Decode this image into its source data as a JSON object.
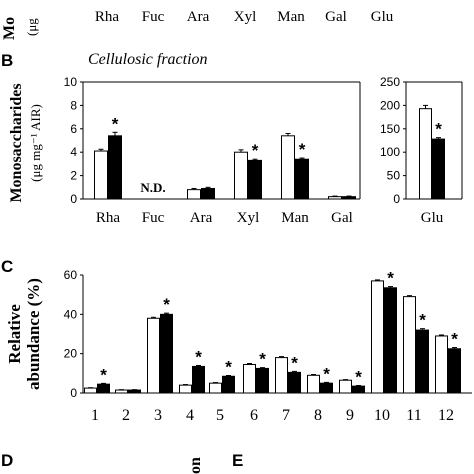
{
  "figure": {
    "top_partial": {
      "ylabel_fragment": "Mo",
      "unit_fragment": "(μg",
      "categories": [
        "Rha",
        "Fuc",
        "Ara",
        "Xyl",
        "Man",
        "Gal",
        "Glu"
      ]
    },
    "panel_b": {
      "letter": "B",
      "title": "Cellulosic fraction",
      "ylabel_line1": "Monosaccharides",
      "ylabel_line2": "(μg mg⁻¹ AIR)",
      "nd_label": "N.D."
    },
    "panel_c": {
      "letter": "C",
      "ylabel_line1": "Relative",
      "ylabel_line2": "abundance (%)"
    },
    "bottom_partial": {
      "letter_d": "D",
      "letter_e": "E",
      "rotated_fragment": "on"
    }
  },
  "colors": {
    "control": "#ffffff",
    "treatment": "#000000",
    "axis": "#000000"
  },
  "chart_data": [
    {
      "type": "bar",
      "panel": "B-left",
      "title": "Cellulosic fraction",
      "categories": [
        "Rha",
        "Fuc",
        "Ara",
        "Xyl",
        "Man",
        "Gal"
      ],
      "series": [
        {
          "fill": "white",
          "values": [
            4.1,
            null,
            0.8,
            4.0,
            5.4,
            0.2
          ],
          "errors": [
            0.15,
            null,
            0.1,
            0.2,
            0.2,
            0.05
          ]
        },
        {
          "fill": "black",
          "values": [
            5.4,
            null,
            0.9,
            3.3,
            3.4,
            0.2
          ],
          "errors": [
            0.3,
            null,
            0.1,
            0.1,
            0.1,
            0.05
          ]
        }
      ],
      "significance": [
        "*",
        "",
        "",
        "*",
        "*",
        ""
      ],
      "annotations": [
        {
          "category": "Fuc",
          "text": "N.D."
        }
      ],
      "yticks": [
        "0",
        "2",
        "4",
        "6",
        "8",
        "10"
      ],
      "ylim": [
        0,
        10
      ],
      "ylabel": "Monosaccharides (μg mg⁻¹ AIR)",
      "grid": false
    },
    {
      "type": "bar",
      "panel": "B-right",
      "categories": [
        "Glu"
      ],
      "series": [
        {
          "fill": "white",
          "values": [
            193
          ],
          "errors": [
            7
          ]
        },
        {
          "fill": "black",
          "values": [
            128
          ],
          "errors": [
            3
          ]
        }
      ],
      "significance": [
        "*"
      ],
      "yticks": [
        "0",
        "50",
        "100",
        "150",
        "200",
        "250"
      ],
      "ylim": [
        0,
        250
      ],
      "grid": false
    },
    {
      "type": "bar",
      "panel": "C",
      "categories": [
        "1",
        "2",
        "3",
        "4",
        "5",
        "6",
        "7",
        "8",
        "9",
        "10",
        "11",
        "12"
      ],
      "series": [
        {
          "fill": "white",
          "values": [
            2.5,
            1.5,
            38,
            4,
            5,
            14.5,
            18,
            9,
            6.5,
            57,
            49,
            29
          ],
          "errors": [
            0.2,
            0.2,
            0.5,
            0.3,
            0.3,
            0.5,
            0.5,
            0.4,
            0.3,
            0.5,
            0.5,
            0.5
          ]
        },
        {
          "fill": "black",
          "values": [
            4.5,
            1.5,
            40,
            13.5,
            8.5,
            12.5,
            10.5,
            5,
            3.5,
            53.5,
            32,
            22.5
          ],
          "errors": [
            0.4,
            0.2,
            0.6,
            0.5,
            0.4,
            0.4,
            0.5,
            0.4,
            0.3,
            0.6,
            0.7,
            0.6
          ]
        }
      ],
      "significance": [
        "*",
        "",
        "*",
        "*",
        "*",
        "*",
        "*",
        "*",
        "*",
        "*",
        "*",
        "*"
      ],
      "yticks": [
        "0",
        "20",
        "40",
        "60"
      ],
      "ylim": [
        0,
        60
      ],
      "ylabel": "Relative abundance (%)",
      "grid": false
    }
  ]
}
